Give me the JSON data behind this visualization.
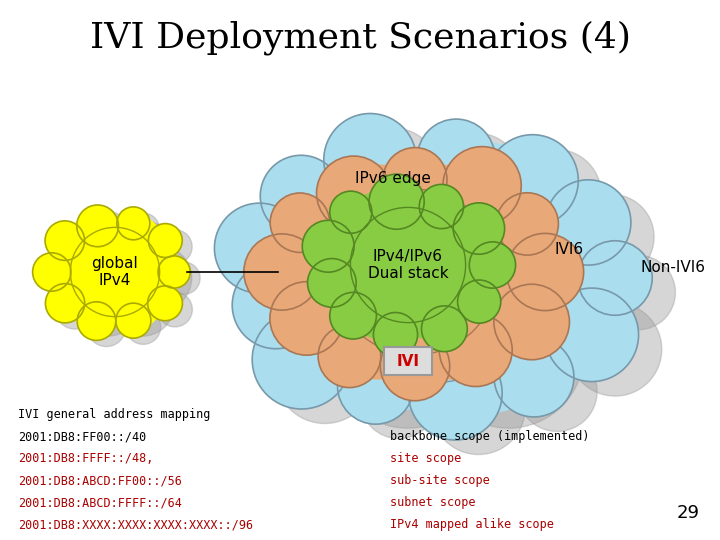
{
  "title": "IVI Deployment Scenarios (4)",
  "title_fontsize": 26,
  "bg_color": "#ffffff",
  "cloud_outer_color": "#aaddee",
  "cloud_outer_edge": "#7799aa",
  "cloud_mid_color": "#e8a878",
  "cloud_mid_edge": "#aa7755",
  "cloud_inner_color": "#88cc44",
  "cloud_inner_edge": "#558822",
  "cloud_global_color": "#ffff00",
  "cloud_global_edge": "#aaaa00",
  "shadow_color": "#888888",
  "label_ipv6_edge": "IPv6 edge",
  "label_ipv4ipv6": "IPv4/IPv6\nDual stack",
  "label_ivi6": "IVI6",
  "label_non_ivi6": "Non-IVI6",
  "label_global_ipv4": "global\nIPv4",
  "label_ivi": "IVI",
  "ivi_box_color": "#dddddd",
  "ivi_box_edge": "#999999",
  "ivi_text_color": "#cc0000",
  "text_bottom_left": [
    {
      "text": "IVI general address mapping",
      "color": "#000000"
    },
    {
      "text": "2001:DB8:FF00::/40",
      "color": "#000000"
    },
    {
      "text": "2001:DB8:FFFF::/48,",
      "color": "#aa0000"
    },
    {
      "text": "2001:DB8:ABCD:FF00::/56",
      "color": "#aa0000"
    },
    {
      "text": "2001:DB8:ABCD:FFFF::/64",
      "color": "#aa0000"
    },
    {
      "text": "2001:DB8:XXXX:XXXX:XXXX:XXXX::/96",
      "color": "#aa0000"
    }
  ],
  "text_bottom_right": [
    {
      "text": "backbone scope (implemented)",
      "color": "#000000"
    },
    {
      "text": "site scope",
      "color": "#aa0000"
    },
    {
      "text": "sub-site scope",
      "color": "#aa0000"
    },
    {
      "text": "subnet scope",
      "color": "#aa0000"
    },
    {
      "text": "IPv4 mapped alike scope",
      "color": "#aa0000"
    }
  ],
  "page_number": "29"
}
